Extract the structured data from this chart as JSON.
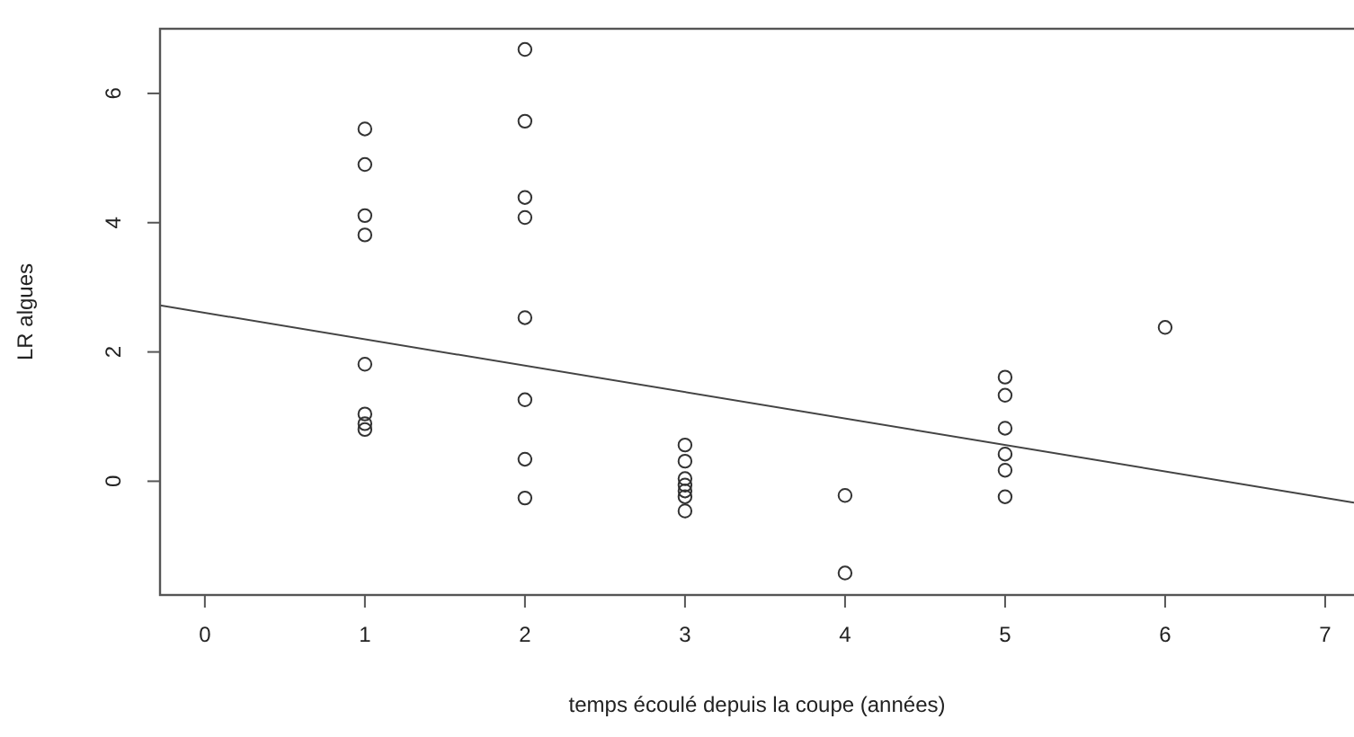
{
  "chart_data": {
    "type": "scatter",
    "xlabel": "temps écoulé depuis la coupe (années)",
    "ylabel": "LR algues",
    "xlim": [
      -0.28,
      7.18
    ],
    "ylim": [
      -1.76,
      7.0
    ],
    "xticks": [
      0,
      1,
      2,
      3,
      4,
      5,
      6,
      7
    ],
    "yticks": [
      0,
      2,
      4,
      6
    ],
    "series": [
      {
        "marker": "circle",
        "color": "#333333",
        "x": [
          1,
          1,
          1,
          1,
          1,
          1,
          1,
          1,
          2,
          2,
          2,
          2,
          2,
          2,
          2,
          2,
          3,
          3,
          3,
          3,
          3,
          3,
          3,
          4,
          4,
          5,
          5,
          5,
          5,
          5,
          5,
          6
        ],
        "values": [
          5.45,
          4.9,
          4.11,
          3.81,
          1.81,
          1.04,
          0.89,
          0.8,
          6.68,
          5.57,
          4.39,
          4.08,
          2.53,
          1.26,
          0.34,
          -0.26,
          0.56,
          0.31,
          0.04,
          -0.06,
          -0.15,
          -0.24,
          -0.46,
          -0.22,
          -1.42,
          1.61,
          1.33,
          0.82,
          0.42,
          0.17,
          -0.24,
          2.38
        ]
      },
      {
        "type": "line",
        "marker": "none",
        "color": "#444444",
        "x": [
          -0.28,
          7.18
        ],
        "values": [
          2.72,
          -0.33
        ]
      }
    ]
  }
}
